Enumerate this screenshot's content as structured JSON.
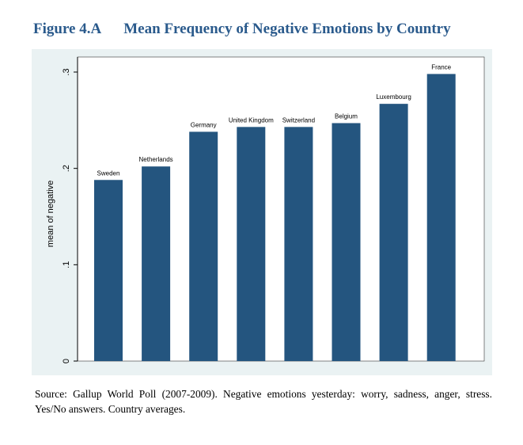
{
  "figure": {
    "number": "Figure 4.A",
    "title": "Mean Frequency of Negative Emotions by Country"
  },
  "source_note": "Source: Gallup World Poll (2007-2009). Negative emotions yesterday: worry, sadness, anger, stress.   Yes/No answers. Country averages.",
  "colors": {
    "bar": "#24557f",
    "panel_background": "#eaf2f3",
    "plot_background": "#ffffff",
    "title": "#2a5a8c"
  },
  "chart_data": {
    "type": "bar",
    "categories": [
      "Sweden",
      "Netherlands",
      "Germany",
      "United Kingdom",
      "Switzerland",
      "Belgium",
      "Luxembourg",
      "France"
    ],
    "values": [
      0.188,
      0.202,
      0.238,
      0.243,
      0.243,
      0.247,
      0.267,
      0.298
    ],
    "ylabel": "mean of negative",
    "xlabel": "",
    "ylim": [
      0,
      0.3
    ],
    "yticks": [
      0,
      0.1,
      0.2,
      0.3
    ],
    "ytick_labels": [
      "0",
      ".1",
      ".2",
      ".3"
    ],
    "bar_labels": "above each bar",
    "grid": false,
    "legend": false
  }
}
